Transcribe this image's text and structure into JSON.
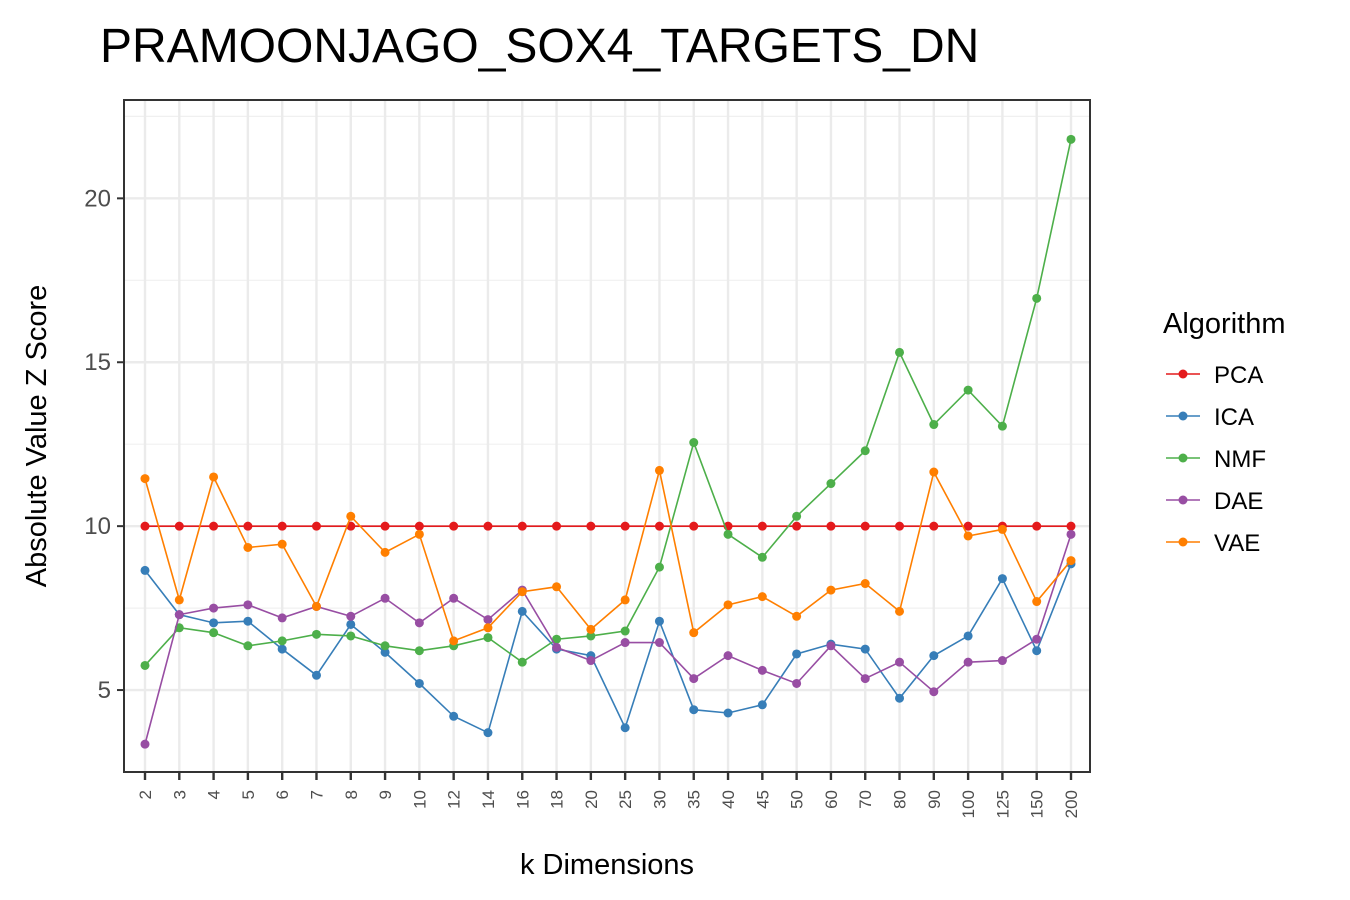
{
  "chart_data": {
    "type": "line",
    "title": "PRAMOONJAGO_SOX4_TARGETS_DN",
    "xlabel": "k Dimensions",
    "ylabel": "Absolute Value Z Score",
    "categories": [
      "2",
      "3",
      "4",
      "5",
      "6",
      "7",
      "8",
      "9",
      "10",
      "12",
      "14",
      "16",
      "18",
      "20",
      "25",
      "30",
      "35",
      "40",
      "45",
      "50",
      "60",
      "70",
      "80",
      "90",
      "100",
      "125",
      "150",
      "200"
    ],
    "yticks": [
      5,
      10,
      15,
      20
    ],
    "ylim": [
      2.5,
      23
    ],
    "grid": true,
    "legend": {
      "title": "Algorithm",
      "position": "right"
    },
    "series": [
      {
        "name": "PCA",
        "color": "#e41a1c",
        "values": [
          10.0,
          10.0,
          10.0,
          10.0,
          10.0,
          10.0,
          10.0,
          10.0,
          10.0,
          10.0,
          10.0,
          10.0,
          10.0,
          10.0,
          10.0,
          10.0,
          10.0,
          10.0,
          10.0,
          10.0,
          10.0,
          10.0,
          10.0,
          10.0,
          10.0,
          10.0,
          10.0,
          10.0
        ]
      },
      {
        "name": "ICA",
        "color": "#377eb8",
        "values": [
          8.65,
          7.3,
          7.05,
          7.1,
          6.25,
          5.45,
          7.0,
          6.15,
          5.2,
          4.2,
          3.7,
          7.4,
          6.25,
          6.05,
          3.85,
          7.1,
          4.4,
          4.3,
          4.55,
          6.1,
          6.4,
          6.25,
          4.75,
          6.05,
          6.65,
          8.4,
          6.2,
          8.85
        ]
      },
      {
        "name": "NMF",
        "color": "#4daf4a",
        "values": [
          5.75,
          6.9,
          6.75,
          6.35,
          6.5,
          6.7,
          6.65,
          6.35,
          6.2,
          6.35,
          6.6,
          5.85,
          6.55,
          6.65,
          6.8,
          8.75,
          12.55,
          9.75,
          9.05,
          10.3,
          11.3,
          12.3,
          15.3,
          13.1,
          14.15,
          13.05,
          16.95,
          21.8
        ]
      },
      {
        "name": "DAE",
        "color": "#984ea3",
        "values": [
          3.35,
          7.3,
          7.5,
          7.6,
          7.2,
          7.55,
          7.25,
          7.8,
          7.05,
          7.8,
          7.15,
          8.05,
          6.3,
          5.9,
          6.45,
          6.45,
          5.35,
          6.05,
          5.6,
          5.2,
          6.35,
          5.35,
          5.85,
          4.95,
          5.85,
          5.9,
          6.55,
          9.75
        ]
      },
      {
        "name": "VAE",
        "color": "#ff7f00",
        "values": [
          11.45,
          7.75,
          11.5,
          9.35,
          9.45,
          7.55,
          10.3,
          9.2,
          9.75,
          6.5,
          6.9,
          8.0,
          8.15,
          6.85,
          7.75,
          11.7,
          6.75,
          7.6,
          7.85,
          7.25,
          8.05,
          8.25,
          7.4,
          11.65,
          9.7,
          9.9,
          7.7,
          8.95
        ]
      }
    ]
  }
}
